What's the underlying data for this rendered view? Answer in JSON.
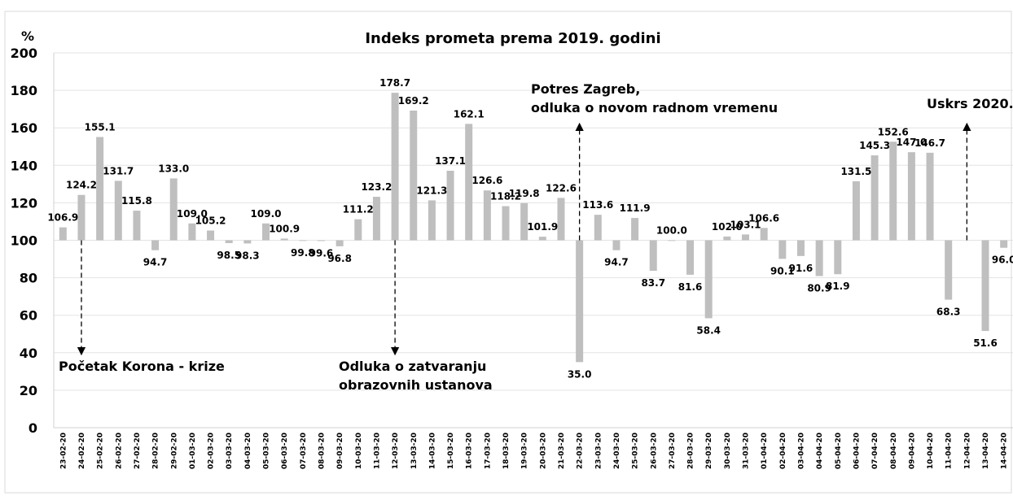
{
  "chart_data": {
    "type": "bar",
    "title": "Indeks prometa prema 2019. godini",
    "y_label": "%",
    "categories": [
      "23-02-20",
      "24-02-20",
      "25-02-20",
      "26-02-20",
      "27-02-20",
      "28-02-20",
      "29-02-20",
      "01-03-20",
      "02-03-20",
      "03-03-20",
      "04-03-20",
      "05-03-20",
      "06-03-20",
      "07-03-20",
      "08-03-20",
      "09-03-20",
      "10-03-20",
      "11-03-20",
      "12-03-20",
      "13-03-20",
      "14-03-20",
      "15-03-20",
      "16-03-20",
      "17-03-20",
      "18-03-20",
      "19-03-20",
      "20-03-20",
      "21-03-20",
      "22-03-20",
      "23-03-20",
      "24-03-20",
      "25-03-20",
      "26-03-20",
      "27-03-20",
      "28-03-20",
      "29-03-20",
      "30-03-20",
      "31-03-20",
      "01-04-20",
      "02-04-20",
      "03-04-20",
      "04-04-20",
      "05-04-20",
      "06-04-20",
      "07-04-20",
      "08-04-20",
      "09-04-20",
      "10-04-20",
      "11-04-20",
      "12-04-20",
      "13-04-20",
      "14-04-20"
    ],
    "values": [
      106.9,
      124.2,
      155.1,
      131.7,
      115.8,
      94.7,
      133.0,
      109.0,
      105.2,
      98.5,
      98.3,
      109.0,
      100.9,
      99.8,
      99.6,
      96.8,
      111.2,
      123.2,
      178.7,
      169.2,
      121.3,
      137.1,
      162.1,
      126.6,
      118.2,
      119.8,
      101.9,
      122.6,
      35.0,
      113.6,
      94.7,
      111.9,
      83.7,
      100.0,
      81.6,
      58.4,
      102.0,
      103.1,
      106.6,
      90.1,
      91.6,
      80.9,
      81.9,
      131.5,
      145.3,
      152.6,
      147.0,
      146.7,
      68.3,
      null,
      51.6,
      96.0
    ],
    "value_labels": [
      "106.9",
      "124.2",
      "155.1",
      "131.7",
      "115.8",
      "94.7",
      "133.0",
      "109.0",
      "105.2",
      "98.5",
      "98.3",
      "109.0",
      "100.9",
      "99.8",
      "99.6",
      "96.8",
      "111.2",
      "123.2",
      "178.7",
      "169.2",
      "121.3",
      "137.1",
      "162.1",
      "126.6",
      "118.2",
      "119.8",
      "101.9",
      "122.6",
      "35.0",
      "113.6",
      "94.7",
      "111.9",
      "83.7",
      "100.0",
      "81.6",
      "58.4",
      "102.0",
      "103.1",
      "106.6",
      "90.1",
      "91.6",
      "80.9",
      "81.9",
      "131.5",
      "145.3",
      "152.6",
      "147.0",
      "146.7",
      "68.3",
      null,
      "51.6",
      "96.0"
    ],
    "baseline": 100,
    "color": "#bfbfbf",
    "ylim": [
      0,
      200
    ],
    "yticks": [
      0,
      20,
      40,
      60,
      80,
      100,
      120,
      140,
      160,
      180,
      200
    ],
    "grid": true,
    "annotations": [
      {
        "text": [
          "Početak Korona - krize"
        ],
        "category": "24-02-20"
      },
      {
        "text": [
          "Odluka o zatvaranju",
          "obrazovnih ustanova"
        ],
        "category": "12-03-20"
      },
      {
        "text": [
          "Potres Zagreb,",
          "odluka o novom radnom vremenu"
        ],
        "category": "22-03-20"
      },
      {
        "text": [
          "Uskrs 2020."
        ],
        "category": "12-04-20"
      }
    ]
  }
}
